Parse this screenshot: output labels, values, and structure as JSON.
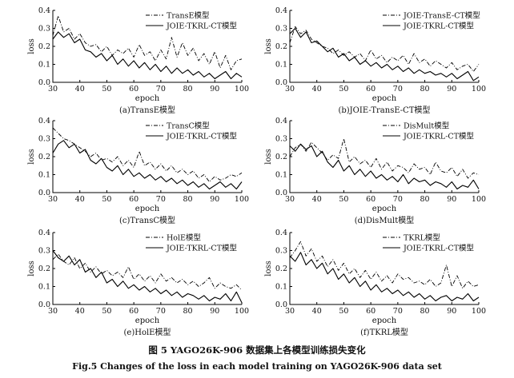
{
  "figure": {
    "caption_cn": "图 5   YAGO26K-906 数据集上各模型训练损失变化",
    "caption_en": "Fig.5    Changes of the loss in each model training on YAGO26K-906 data set"
  },
  "chart_data": [
    {
      "type": "line",
      "subtitle": "(a)TransE模型",
      "xlabel": "epoch",
      "ylabel": "loss",
      "xlim": [
        30,
        100
      ],
      "ylim": [
        0,
        0.4
      ],
      "xticks": [
        "30",
        "40",
        "50",
        "60",
        "70",
        "80",
        "90",
        "100"
      ],
      "yticks": [
        "0.0",
        "0.1",
        "0.2",
        "0.3",
        "0.4"
      ],
      "legend_position": "top-right",
      "series": [
        {
          "name": "TransE模型",
          "style": "dashdot",
          "x": [
            30,
            32,
            34,
            36,
            38,
            40,
            42,
            44,
            46,
            48,
            50,
            52,
            54,
            56,
            58,
            60,
            62,
            64,
            66,
            68,
            70,
            72,
            74,
            76,
            78,
            80,
            82,
            84,
            86,
            88,
            90,
            92,
            94,
            96,
            98,
            100
          ],
          "values": [
            0.26,
            0.37,
            0.28,
            0.3,
            0.24,
            0.27,
            0.22,
            0.2,
            0.21,
            0.17,
            0.2,
            0.15,
            0.18,
            0.16,
            0.19,
            0.14,
            0.21,
            0.15,
            0.17,
            0.12,
            0.18,
            0.13,
            0.25,
            0.14,
            0.22,
            0.15,
            0.19,
            0.12,
            0.16,
            0.1,
            0.17,
            0.08,
            0.15,
            0.07,
            0.12,
            0.13
          ]
        },
        {
          "name": "JOIE-TKRL-CT模型",
          "style": "solid",
          "x": [
            30,
            32,
            34,
            36,
            38,
            40,
            42,
            44,
            46,
            48,
            50,
            52,
            54,
            56,
            58,
            60,
            62,
            64,
            66,
            68,
            70,
            72,
            74,
            76,
            78,
            80,
            82,
            84,
            86,
            88,
            90,
            92,
            94,
            96,
            98,
            100
          ],
          "values": [
            0.24,
            0.28,
            0.25,
            0.27,
            0.22,
            0.24,
            0.18,
            0.17,
            0.14,
            0.16,
            0.12,
            0.15,
            0.1,
            0.13,
            0.09,
            0.12,
            0.08,
            0.11,
            0.07,
            0.1,
            0.06,
            0.09,
            0.05,
            0.08,
            0.05,
            0.07,
            0.04,
            0.06,
            0.03,
            0.05,
            0.02,
            0.04,
            0.06,
            0.02,
            0.05,
            0.03
          ]
        }
      ]
    },
    {
      "type": "line",
      "subtitle": "(b)JOIE-TransE-CT模型",
      "xlabel": "epoch",
      "ylabel": "loss",
      "xlim": [
        30,
        100
      ],
      "ylim": [
        0,
        0.4
      ],
      "xticks": [
        "30",
        "40",
        "50",
        "60",
        "70",
        "80",
        "90",
        "100"
      ],
      "yticks": [
        "0.0",
        "0.1",
        "0.2",
        "0.3",
        "0.4"
      ],
      "legend_position": "top-right",
      "series": [
        {
          "name": "JOIE-TransE-CT模型",
          "style": "dashdot",
          "x": [
            30,
            32,
            34,
            36,
            38,
            40,
            42,
            44,
            46,
            48,
            50,
            52,
            54,
            56,
            58,
            60,
            62,
            64,
            66,
            68,
            70,
            72,
            74,
            76,
            78,
            80,
            82,
            84,
            86,
            88,
            90,
            92,
            94,
            96,
            98,
            100
          ],
          "values": [
            0.22,
            0.31,
            0.27,
            0.29,
            0.24,
            0.22,
            0.2,
            0.19,
            0.16,
            0.18,
            0.15,
            0.17,
            0.14,
            0.16,
            0.12,
            0.18,
            0.13,
            0.15,
            0.11,
            0.14,
            0.12,
            0.15,
            0.1,
            0.16,
            0.11,
            0.13,
            0.09,
            0.12,
            0.1,
            0.08,
            0.11,
            0.07,
            0.09,
            0.1,
            0.06,
            0.1
          ]
        },
        {
          "name": "JOIE-TKRL-CT模型",
          "style": "solid",
          "x": [
            30,
            32,
            34,
            36,
            38,
            40,
            42,
            44,
            46,
            48,
            50,
            52,
            54,
            56,
            58,
            60,
            62,
            64,
            66,
            68,
            70,
            72,
            74,
            76,
            78,
            80,
            82,
            84,
            86,
            88,
            90,
            92,
            94,
            96,
            98,
            100
          ],
          "values": [
            0.27,
            0.3,
            0.25,
            0.28,
            0.22,
            0.23,
            0.2,
            0.17,
            0.19,
            0.14,
            0.16,
            0.12,
            0.14,
            0.1,
            0.12,
            0.09,
            0.11,
            0.08,
            0.1,
            0.07,
            0.09,
            0.06,
            0.08,
            0.05,
            0.07,
            0.05,
            0.06,
            0.04,
            0.05,
            0.03,
            0.05,
            0.02,
            0.04,
            0.06,
            0.01,
            0.03
          ]
        }
      ]
    },
    {
      "type": "line",
      "subtitle": "(c)TransC模型",
      "xlabel": "epoch",
      "ylabel": "loss",
      "xlim": [
        30,
        100
      ],
      "ylim": [
        0,
        0.4
      ],
      "xticks": [
        "30",
        "40",
        "50",
        "60",
        "70",
        "80",
        "90",
        "100"
      ],
      "yticks": [
        "0.0",
        "0.1",
        "0.2",
        "0.3",
        "0.4"
      ],
      "legend_position": "top-right",
      "series": [
        {
          "name": "TransC模型",
          "style": "dashdot",
          "x": [
            30,
            32,
            34,
            36,
            38,
            40,
            42,
            44,
            46,
            48,
            50,
            52,
            54,
            56,
            58,
            60,
            62,
            64,
            66,
            68,
            70,
            72,
            74,
            76,
            78,
            80,
            82,
            84,
            86,
            88,
            90,
            92,
            94,
            96,
            98,
            100
          ],
          "values": [
            0.36,
            0.33,
            0.3,
            0.29,
            0.27,
            0.25,
            0.23,
            0.2,
            0.22,
            0.18,
            0.19,
            0.17,
            0.2,
            0.15,
            0.18,
            0.14,
            0.23,
            0.15,
            0.17,
            0.13,
            0.16,
            0.12,
            0.15,
            0.11,
            0.13,
            0.1,
            0.12,
            0.08,
            0.1,
            0.06,
            0.09,
            0.07,
            0.08,
            0.1,
            0.09,
            0.11
          ]
        },
        {
          "name": "JOIE-TKRL-CT模型",
          "style": "solid",
          "x": [
            30,
            32,
            34,
            36,
            38,
            40,
            42,
            44,
            46,
            48,
            50,
            52,
            54,
            56,
            58,
            60,
            62,
            64,
            66,
            68,
            70,
            72,
            74,
            76,
            78,
            80,
            82,
            84,
            86,
            88,
            90,
            92,
            94,
            96,
            98,
            100
          ],
          "values": [
            0.22,
            0.27,
            0.29,
            0.25,
            0.27,
            0.22,
            0.24,
            0.18,
            0.16,
            0.19,
            0.14,
            0.12,
            0.15,
            0.1,
            0.13,
            0.09,
            0.11,
            0.08,
            0.1,
            0.07,
            0.09,
            0.06,
            0.08,
            0.05,
            0.07,
            0.04,
            0.06,
            0.03,
            0.05,
            0.02,
            0.04,
            0.06,
            0.03,
            0.05,
            0.02,
            0.06
          ]
        }
      ]
    },
    {
      "type": "line",
      "subtitle": "(d)DisMult模型",
      "xlabel": "epoch",
      "ylabel": "loss",
      "xlim": [
        30,
        100
      ],
      "ylim": [
        0,
        0.4
      ],
      "xticks": [
        "30",
        "40",
        "50",
        "60",
        "70",
        "80",
        "90",
        "100"
      ],
      "yticks": [
        "0.0",
        "0.1",
        "0.2",
        "0.3",
        "0.4"
      ],
      "legend_position": "top-right",
      "series": [
        {
          "name": "DisMult模型",
          "style": "dashdot",
          "x": [
            30,
            32,
            34,
            36,
            38,
            40,
            42,
            44,
            46,
            48,
            50,
            52,
            54,
            56,
            58,
            60,
            62,
            64,
            66,
            68,
            70,
            72,
            74,
            76,
            78,
            80,
            82,
            84,
            86,
            88,
            90,
            92,
            94,
            96,
            98,
            100
          ],
          "values": [
            0.2,
            0.25,
            0.27,
            0.23,
            0.28,
            0.25,
            0.22,
            0.18,
            0.21,
            0.19,
            0.3,
            0.17,
            0.2,
            0.16,
            0.18,
            0.14,
            0.19,
            0.13,
            0.17,
            0.12,
            0.15,
            0.14,
            0.11,
            0.16,
            0.13,
            0.14,
            0.1,
            0.17,
            0.12,
            0.11,
            0.14,
            0.09,
            0.13,
            0.08,
            0.11,
            0.1
          ]
        },
        {
          "name": "JOIE-TKRL-CT模型",
          "style": "solid",
          "x": [
            30,
            32,
            34,
            36,
            38,
            40,
            42,
            44,
            46,
            48,
            50,
            52,
            54,
            56,
            58,
            60,
            62,
            64,
            66,
            68,
            70,
            72,
            74,
            76,
            78,
            80,
            82,
            84,
            86,
            88,
            90,
            92,
            94,
            96,
            98,
            100
          ],
          "values": [
            0.26,
            0.23,
            0.27,
            0.24,
            0.26,
            0.2,
            0.23,
            0.17,
            0.14,
            0.18,
            0.12,
            0.15,
            0.1,
            0.13,
            0.09,
            0.12,
            0.08,
            0.1,
            0.07,
            0.09,
            0.06,
            0.1,
            0.05,
            0.08,
            0.06,
            0.07,
            0.04,
            0.06,
            0.05,
            0.03,
            0.06,
            0.02,
            0.04,
            0.03,
            0.07,
            0.02
          ]
        }
      ]
    },
    {
      "type": "line",
      "subtitle": "(e)HolE模型",
      "xlabel": "epoch",
      "ylabel": "loss",
      "xlim": [
        30,
        100
      ],
      "ylim": [
        0,
        0.4
      ],
      "xticks": [
        "30",
        "40",
        "50",
        "60",
        "70",
        "80",
        "90",
        "100"
      ],
      "yticks": [
        "0.0",
        "0.1",
        "0.2",
        "0.3",
        "0.4"
      ],
      "legend_position": "top-right",
      "series": [
        {
          "name": "HolE模型",
          "style": "dashdot",
          "x": [
            30,
            32,
            34,
            36,
            38,
            40,
            42,
            44,
            46,
            48,
            50,
            52,
            54,
            56,
            58,
            60,
            62,
            64,
            66,
            68,
            70,
            72,
            74,
            76,
            78,
            80,
            82,
            84,
            86,
            88,
            90,
            92,
            94,
            96,
            98,
            100
          ],
          "values": [
            0.25,
            0.28,
            0.24,
            0.22,
            0.26,
            0.2,
            0.23,
            0.18,
            0.21,
            0.17,
            0.19,
            0.16,
            0.18,
            0.15,
            0.21,
            0.14,
            0.17,
            0.13,
            0.16,
            0.12,
            0.17,
            0.13,
            0.15,
            0.12,
            0.14,
            0.11,
            0.13,
            0.1,
            0.12,
            0.15,
            0.09,
            0.12,
            0.1,
            0.09,
            0.11,
            0.08
          ]
        },
        {
          "name": "JOIE-TKRL-CT模型",
          "style": "solid",
          "x": [
            30,
            32,
            34,
            36,
            38,
            40,
            42,
            44,
            46,
            48,
            50,
            52,
            54,
            56,
            58,
            60,
            62,
            64,
            66,
            68,
            70,
            72,
            74,
            76,
            78,
            80,
            82,
            84,
            86,
            88,
            90,
            92,
            94,
            96,
            98,
            100
          ],
          "values": [
            0.3,
            0.26,
            0.24,
            0.27,
            0.22,
            0.25,
            0.18,
            0.2,
            0.15,
            0.18,
            0.12,
            0.14,
            0.1,
            0.13,
            0.09,
            0.11,
            0.08,
            0.1,
            0.07,
            0.09,
            0.06,
            0.08,
            0.05,
            0.07,
            0.04,
            0.06,
            0.05,
            0.03,
            0.05,
            0.02,
            0.04,
            0.03,
            0.06,
            0.02,
            0.07,
            0.01
          ]
        }
      ]
    },
    {
      "type": "line",
      "subtitle": "(f)TKRL模型",
      "xlabel": "epoch",
      "ylabel": "loss",
      "xlim": [
        30,
        100
      ],
      "ylim": [
        0,
        0.4
      ],
      "xticks": [
        "30",
        "40",
        "50",
        "60",
        "70",
        "80",
        "90",
        "100"
      ],
      "yticks": [
        "0.0",
        "0.1",
        "0.2",
        "0.3",
        "0.4"
      ],
      "legend_position": "top-right",
      "series": [
        {
          "name": "TKRL模型",
          "style": "dashdot",
          "x": [
            30,
            32,
            34,
            36,
            38,
            40,
            42,
            44,
            46,
            48,
            50,
            52,
            54,
            56,
            58,
            60,
            62,
            64,
            66,
            68,
            70,
            72,
            74,
            76,
            78,
            80,
            82,
            84,
            86,
            88,
            90,
            92,
            94,
            96,
            98,
            100
          ],
          "values": [
            0.26,
            0.3,
            0.35,
            0.27,
            0.31,
            0.24,
            0.27,
            0.21,
            0.25,
            0.19,
            0.23,
            0.17,
            0.2,
            0.15,
            0.19,
            0.14,
            0.18,
            0.13,
            0.16,
            0.12,
            0.17,
            0.14,
            0.15,
            0.12,
            0.13,
            0.11,
            0.14,
            0.1,
            0.12,
            0.22,
            0.1,
            0.16,
            0.09,
            0.13,
            0.1,
            0.11
          ]
        },
        {
          "name": "JOIE-TKRL-CT模型",
          "style": "solid",
          "x": [
            30,
            32,
            34,
            36,
            38,
            40,
            42,
            44,
            46,
            48,
            50,
            52,
            54,
            56,
            58,
            60,
            62,
            64,
            66,
            68,
            70,
            72,
            74,
            76,
            78,
            80,
            82,
            84,
            86,
            88,
            90,
            92,
            94,
            96,
            98,
            100
          ],
          "values": [
            0.27,
            0.24,
            0.29,
            0.22,
            0.25,
            0.2,
            0.23,
            0.17,
            0.2,
            0.14,
            0.17,
            0.12,
            0.15,
            0.1,
            0.13,
            0.08,
            0.11,
            0.07,
            0.09,
            0.06,
            0.08,
            0.05,
            0.07,
            0.04,
            0.06,
            0.03,
            0.05,
            0.02,
            0.04,
            0.05,
            0.02,
            0.04,
            0.03,
            0.06,
            0.02,
            0.04
          ]
        }
      ]
    }
  ]
}
